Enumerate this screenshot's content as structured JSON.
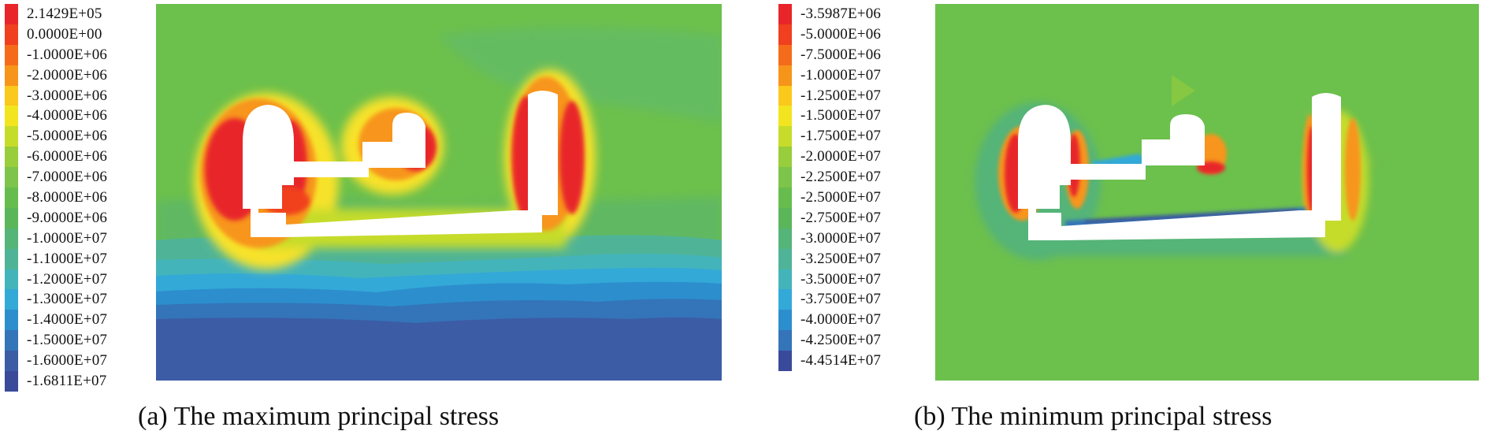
{
  "panel_a": {
    "caption": "(a) The maximum principal stress",
    "legend": [
      {
        "label": "2.1429E+05",
        "color": "#e8262a"
      },
      {
        "label": "0.0000E+00",
        "color": "#f0401f"
      },
      {
        "label": "-1.0000E+06",
        "color": "#f46c1a"
      },
      {
        "label": "-2.0000E+06",
        "color": "#f7951a"
      },
      {
        "label": "-3.0000E+06",
        "color": "#fbc81c"
      },
      {
        "label": "-4.0000E+06",
        "color": "#f2e51f"
      },
      {
        "label": "-5.0000E+06",
        "color": "#c6dc2a"
      },
      {
        "label": "-6.0000E+06",
        "color": "#98cd3b"
      },
      {
        "label": "-7.0000E+06",
        "color": "#7cc44a"
      },
      {
        "label": "-8.0000E+06",
        "color": "#66bd4e"
      },
      {
        "label": "-9.0000E+06",
        "color": "#5bb65a"
      },
      {
        "label": "-1.0000E+07",
        "color": "#55b478"
      },
      {
        "label": "-1.1000E+07",
        "color": "#4fb497"
      },
      {
        "label": "-1.2000E+07",
        "color": "#44b4bb"
      },
      {
        "label": "-1.3000E+07",
        "color": "#33a9d8"
      },
      {
        "label": "-1.4000E+07",
        "color": "#2c8ecd"
      },
      {
        "label": "-1.5000E+07",
        "color": "#3474b8"
      },
      {
        "label": "-1.6000E+07",
        "color": "#3c5ca6"
      },
      {
        "label": "-1.6811E+07",
        "color": "#3a4a9a"
      }
    ]
  },
  "panel_b": {
    "caption": "(b) The minimum principal stress",
    "legend": [
      {
        "label": "-3.5987E+06",
        "color": "#e8262a"
      },
      {
        "label": "-5.0000E+06",
        "color": "#f0401f"
      },
      {
        "label": "-7.5000E+06",
        "color": "#f46c1a"
      },
      {
        "label": "-1.0000E+07",
        "color": "#f7951a"
      },
      {
        "label": "-1.2500E+07",
        "color": "#fbc81c"
      },
      {
        "label": "-1.5000E+07",
        "color": "#f2e51f"
      },
      {
        "label": "-1.7500E+07",
        "color": "#c6dc2a"
      },
      {
        "label": "-2.0000E+07",
        "color": "#98cd3b"
      },
      {
        "label": "-2.2500E+07",
        "color": "#7cc44a"
      },
      {
        "label": "-2.5000E+07",
        "color": "#66bd4e"
      },
      {
        "label": "-2.7500E+07",
        "color": "#5bb65a"
      },
      {
        "label": "-3.0000E+07",
        "color": "#55b478"
      },
      {
        "label": "-3.2500E+07",
        "color": "#4fb497"
      },
      {
        "label": "-3.5000E+07",
        "color": "#44b4bb"
      },
      {
        "label": "-3.7500E+07",
        "color": "#33a9d8"
      },
      {
        "label": "-4.0000E+07",
        "color": "#2c8ecd"
      },
      {
        "label": "-4.2500E+07",
        "color": "#3474b8"
      },
      {
        "label": "-4.4514E+07",
        "color": "#3a4a9a"
      }
    ]
  }
}
